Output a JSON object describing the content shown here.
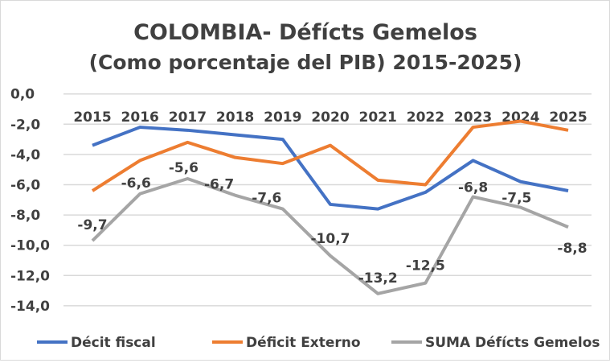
{
  "chart_data": {
    "type": "line",
    "title": "COLOMBIA- Défícts Gemelos",
    "subtitle": "(Como porcentaje del PIB) 2015-2025)",
    "categories": [
      "2015",
      "2016",
      "2017",
      "2018",
      "2019",
      "2020",
      "2021",
      "2022",
      "2023",
      "2024",
      "2025"
    ],
    "ylim": [
      -14,
      0
    ],
    "yticks": [
      "0,0",
      "-2,0",
      "-4,0",
      "-6,0",
      "-8,0",
      "-10,0",
      "-12,0",
      "-14,0"
    ],
    "grid": true,
    "legend_position": "bottom",
    "series": [
      {
        "name": "Décit fiscal",
        "color": "#4472c4",
        "values": [
          -3.4,
          -2.2,
          -2.4,
          -2.7,
          -3.0,
          -7.3,
          -7.6,
          -6.5,
          -4.4,
          -5.8,
          -6.4
        ]
      },
      {
        "name": "Déficit Externo",
        "color": "#ed7d31",
        "values": [
          -6.4,
          -4.4,
          -3.2,
          -4.2,
          -4.6,
          -3.4,
          -5.7,
          -6.0,
          -2.2,
          -1.8,
          -2.4
        ]
      },
      {
        "name": "SUMA Défícts Gemelos",
        "color": "#a5a5a5",
        "values": [
          -9.7,
          -6.6,
          -5.6,
          -6.7,
          -7.6,
          -10.7,
          -13.2,
          -12.5,
          -6.8,
          -7.5,
          -8.8
        ],
        "data_labels": [
          "-9,7",
          "-6,6",
          "-5,6",
          "-6,7",
          "-7,6",
          "-10,7",
          "-13,2",
          "-12,5",
          "-6,8",
          "-7,5",
          "-8,8"
        ]
      }
    ]
  }
}
